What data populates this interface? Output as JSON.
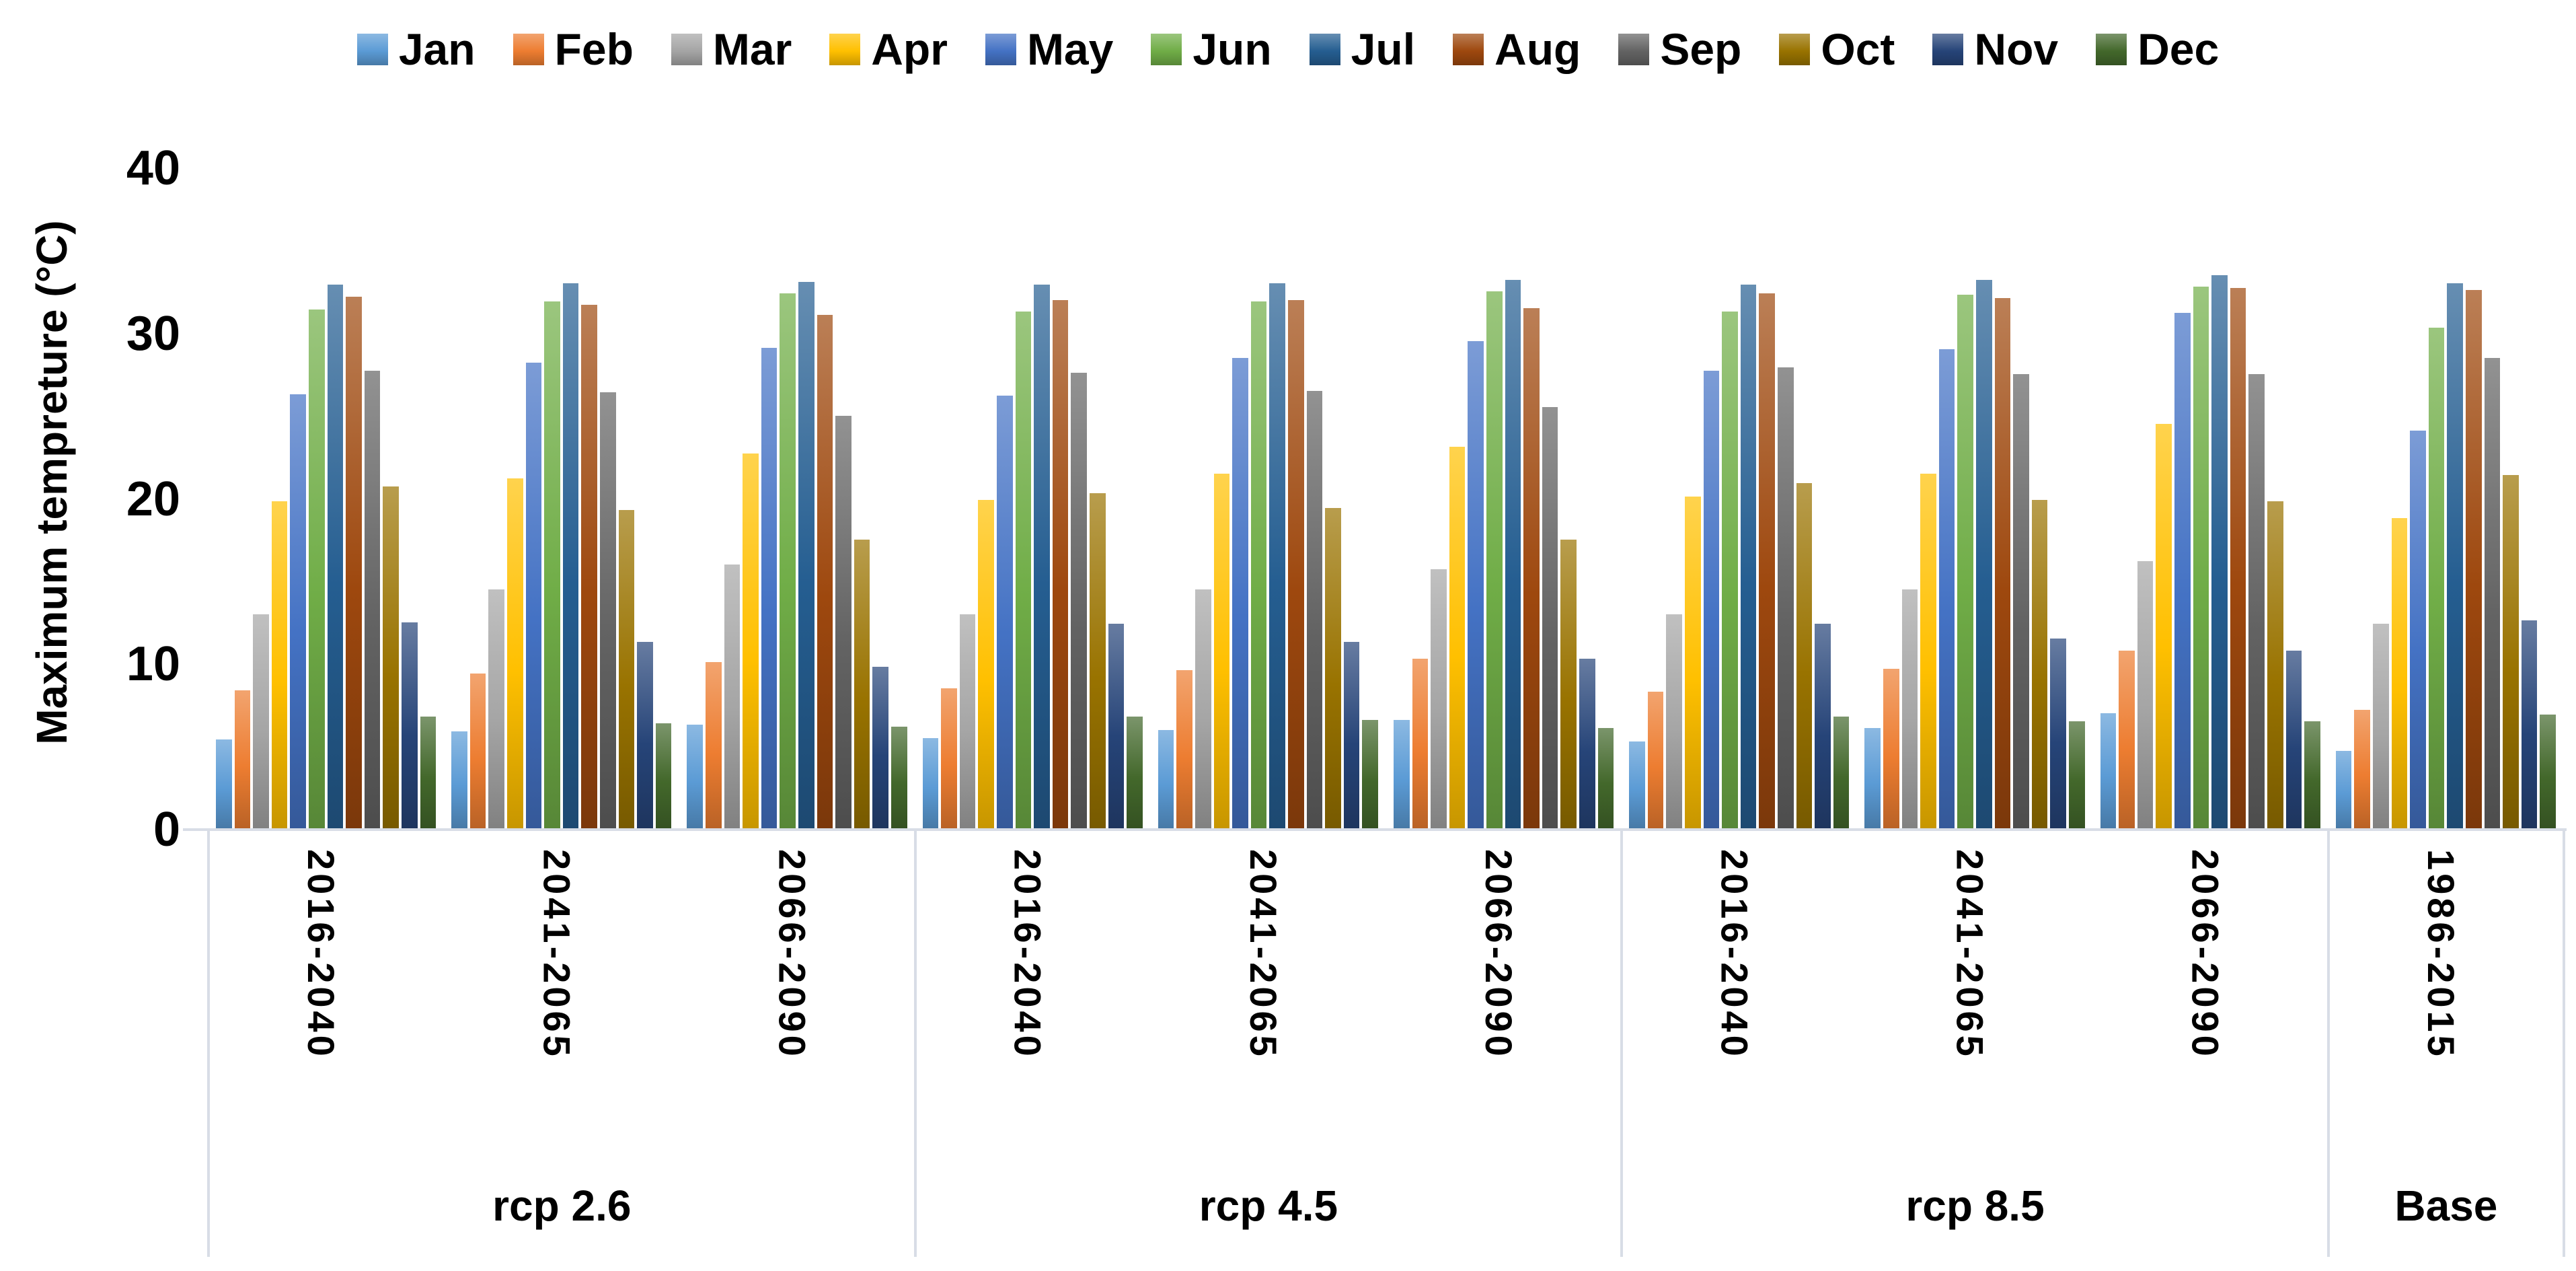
{
  "y_axis": {
    "title": "Maximum tempreture (°C)",
    "ticks": [
      "0",
      "10",
      "20",
      "30",
      "40"
    ],
    "tick_values": [
      0,
      10,
      20,
      30,
      40
    ],
    "max": 40
  },
  "legend": {
    "items": [
      {
        "label": "Jan",
        "color": "#5B9BD5"
      },
      {
        "label": "Feb",
        "color": "#ED7D31"
      },
      {
        "label": "Mar",
        "color": "#A5A5A5"
      },
      {
        "label": "Apr",
        "color": "#FFC000"
      },
      {
        "label": "May",
        "color": "#4472C4"
      },
      {
        "label": "Jun",
        "color": "#70AD47"
      },
      {
        "label": "Jul",
        "color": "#255E91"
      },
      {
        "label": "Aug",
        "color": "#9E480E"
      },
      {
        "label": "Sep",
        "color": "#636363"
      },
      {
        "label": "Oct",
        "color": "#997300"
      },
      {
        "label": "Nov",
        "color": "#264478"
      },
      {
        "label": "Dec",
        "color": "#43682B"
      }
    ]
  },
  "category_axis": {
    "periods": [
      "2016-2040",
      "2041-2065",
      "2066-2090",
      "2016-2040",
      "2041-2065",
      "2066-2090",
      "2016-2040",
      "2041-2065",
      "2066-2090",
      "1986-2015"
    ],
    "sections": [
      {
        "label": "rcp 2.6",
        "group_count": 3
      },
      {
        "label": "rcp 4.5",
        "group_count": 3
      },
      {
        "label": "rcp 8.5",
        "group_count": 3
      },
      {
        "label": "Base",
        "group_count": 1
      }
    ]
  },
  "chart_data": {
    "type": "bar",
    "title": "",
    "xlabel": "",
    "ylabel": "Maximum tempreture (°C)",
    "ylim": [
      0,
      40
    ],
    "grid": false,
    "legend_position": "top",
    "categories": [
      "rcp 2.6 / 2016-2040",
      "rcp 2.6 / 2041-2065",
      "rcp 2.6 / 2066-2090",
      "rcp 4.5 / 2016-2040",
      "rcp 4.5 / 2041-2065",
      "rcp 4.5 / 2066-2090",
      "rcp 8.5 / 2016-2040",
      "rcp 8.5 / 2041-2065",
      "rcp 8.5 / 2066-2090",
      "Base / 1986-2015"
    ],
    "series": [
      {
        "name": "Jan",
        "color": "#5B9BD5",
        "values": [
          5.4,
          5.9,
          6.3,
          5.5,
          6.0,
          6.6,
          5.3,
          6.1,
          7.0,
          4.7
        ]
      },
      {
        "name": "Feb",
        "color": "#ED7D31",
        "values": [
          8.4,
          9.4,
          10.1,
          8.5,
          9.6,
          10.3,
          8.3,
          9.7,
          10.8,
          7.2
        ]
      },
      {
        "name": "Mar",
        "color": "#A5A5A5",
        "values": [
          13.0,
          14.5,
          16.0,
          13.0,
          14.5,
          15.7,
          13.0,
          14.5,
          16.2,
          12.4
        ]
      },
      {
        "name": "Apr",
        "color": "#FFC000",
        "values": [
          19.8,
          21.2,
          22.7,
          19.9,
          21.5,
          23.1,
          20.1,
          21.5,
          24.5,
          18.8
        ]
      },
      {
        "name": "May",
        "color": "#4472C4",
        "values": [
          26.3,
          28.2,
          29.1,
          26.2,
          28.5,
          29.5,
          27.7,
          29.0,
          31.2,
          24.1
        ]
      },
      {
        "name": "Jun",
        "color": "#70AD47",
        "values": [
          31.4,
          31.9,
          32.4,
          31.3,
          31.9,
          32.5,
          31.3,
          32.3,
          32.8,
          30.3
        ]
      },
      {
        "name": "Jul",
        "color": "#255E91",
        "values": [
          32.9,
          33.0,
          33.1,
          32.9,
          33.0,
          33.2,
          32.9,
          33.2,
          33.5,
          33.0
        ]
      },
      {
        "name": "Aug",
        "color": "#9E480E",
        "values": [
          32.2,
          31.7,
          31.1,
          32.0,
          32.0,
          31.5,
          32.4,
          32.1,
          32.7,
          32.6
        ]
      },
      {
        "name": "Sep",
        "color": "#636363",
        "values": [
          27.7,
          26.4,
          25.0,
          27.6,
          26.5,
          25.5,
          27.9,
          27.5,
          27.5,
          28.5
        ]
      },
      {
        "name": "Oct",
        "color": "#997300",
        "values": [
          20.7,
          19.3,
          17.5,
          20.3,
          19.4,
          17.5,
          20.9,
          19.9,
          19.8,
          21.4
        ]
      },
      {
        "name": "Nov",
        "color": "#264478",
        "values": [
          12.5,
          11.3,
          9.8,
          12.4,
          11.3,
          10.3,
          12.4,
          11.5,
          10.8,
          12.6
        ]
      },
      {
        "name": "Dec",
        "color": "#43682B",
        "values": [
          6.8,
          6.4,
          6.2,
          6.8,
          6.6,
          6.1,
          6.8,
          6.5,
          6.5,
          6.9
        ]
      }
    ]
  },
  "colors": {
    "axis_line": "#d8dde6",
    "text": "#000000",
    "background": "#ffffff"
  }
}
